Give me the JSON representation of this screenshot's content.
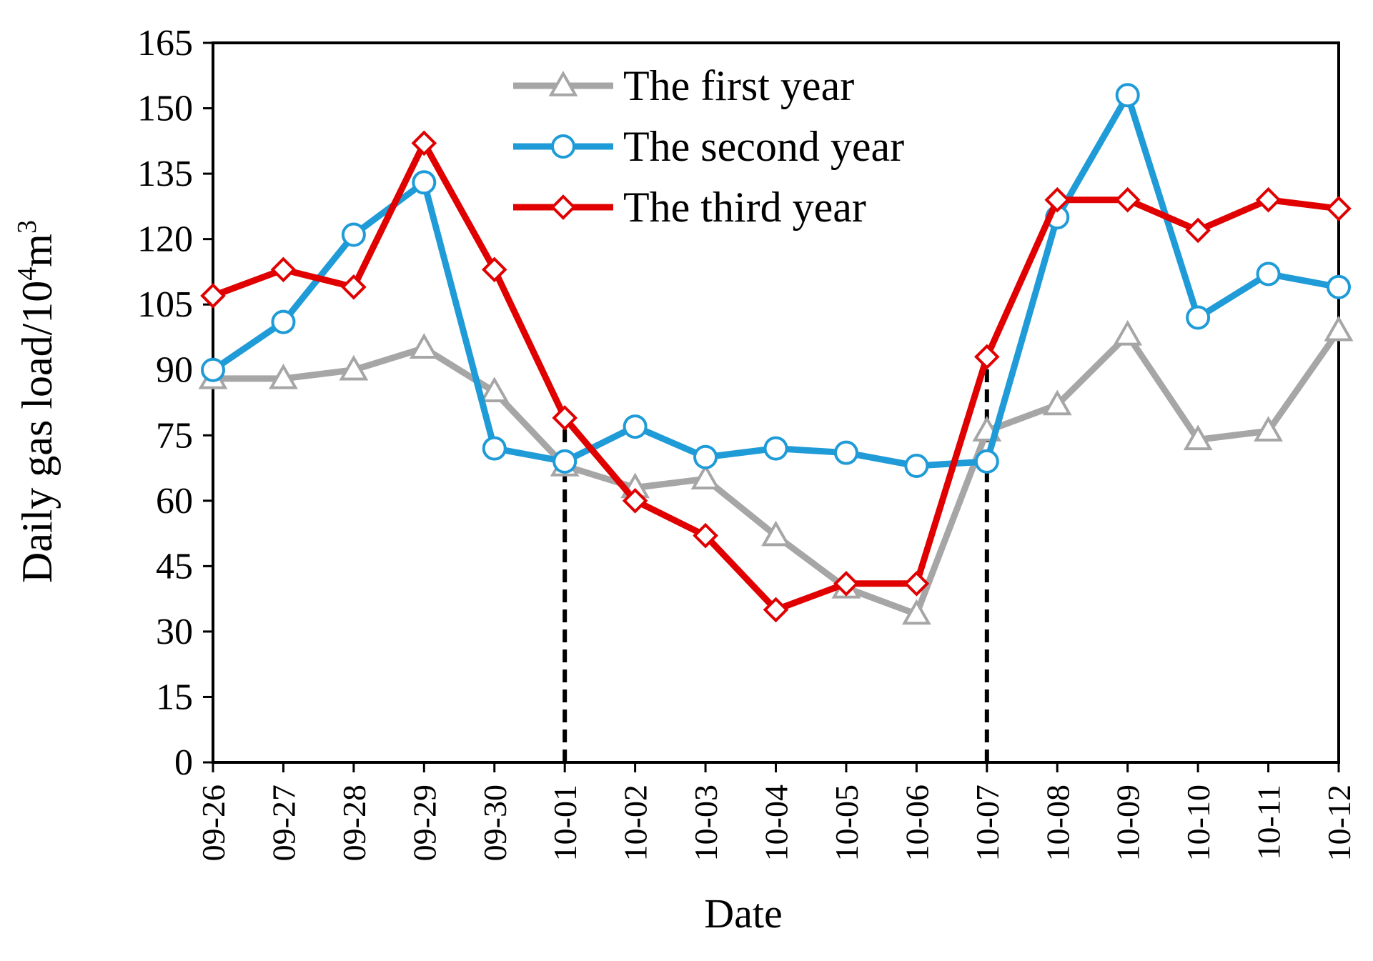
{
  "chart_data": {
    "type": "line",
    "title": "",
    "xlabel": "Date",
    "ylabel": "Daily gas load/10",
    "ylabel_sup1": "4",
    "ylabel_mid": "m",
    "ylabel_sup2": "3",
    "categories": [
      "09-26",
      "09-27",
      "09-28",
      "09-29",
      "09-30",
      "10-01",
      "10-02",
      "10-03",
      "10-04",
      "10-05",
      "10-06",
      "10-07",
      "10-08",
      "10-09",
      "10-10",
      "10-11",
      "10-12"
    ],
    "ylim": [
      0,
      165
    ],
    "yticks": [
      0,
      15,
      30,
      45,
      60,
      75,
      90,
      105,
      120,
      135,
      150,
      165
    ],
    "grid": false,
    "legend_position": "top-center",
    "reference_lines": [
      "10-01",
      "10-07"
    ],
    "series": [
      {
        "name": "The first year",
        "color": "#a6a6a6",
        "marker": "triangle",
        "values": [
          88,
          88,
          90,
          95,
          85,
          68,
          63,
          65,
          52,
          40,
          34,
          76,
          82,
          98,
          74,
          76,
          99
        ]
      },
      {
        "name": "The second year",
        "color": "#1f9bd7",
        "marker": "circle",
        "values": [
          90,
          101,
          121,
          133,
          72,
          69,
          77,
          70,
          72,
          71,
          68,
          69,
          125,
          153,
          102,
          112,
          109
        ]
      },
      {
        "name": "The third year",
        "color": "#e00000",
        "marker": "diamond",
        "values": [
          107,
          113,
          109,
          142,
          113,
          79,
          60,
          52,
          35,
          41,
          41,
          93,
          129,
          129,
          122,
          129,
          127
        ]
      }
    ]
  }
}
